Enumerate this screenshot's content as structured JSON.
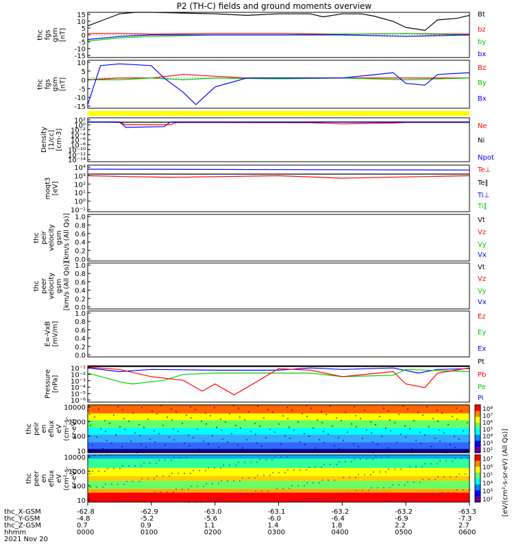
{
  "title": "P2 (TH-C) fields and ground moments overview",
  "colors": {
    "black": "#000000",
    "red": "#ff0000",
    "green": "#00cc00",
    "blue": "#0000ff",
    "yellow": "#ffff00",
    "axis": "#000000"
  },
  "chart_data": [
    {
      "id": "fgs",
      "type": "line",
      "ylabel": [
        "thc",
        "fgs",
        "gsm",
        "[nT]"
      ],
      "yticks": [
        "15",
        "10",
        "5",
        "0",
        "-5",
        "-10",
        "-15"
      ],
      "ylim": [
        -15,
        15
      ],
      "legend": [
        {
          "label": "Bt",
          "color": "black"
        },
        {
          "label": "bz",
          "color": "red"
        },
        {
          "label": "by",
          "color": "green"
        },
        {
          "label": "bx",
          "color": "blue"
        }
      ],
      "series": [
        {
          "name": "Bt",
          "color": "black",
          "x": [
            0,
            0.25,
            0.5,
            0.75,
            1.0,
            1.5,
            2.0,
            2.5,
            3.0,
            3.5,
            3.7,
            4.0,
            4.3,
            4.5,
            4.8,
            5.0,
            5.3,
            5.5,
            5.8,
            6.0
          ],
          "y": [
            6,
            10,
            14,
            15,
            15,
            14.5,
            14,
            13,
            14,
            14,
            12,
            14,
            14,
            12.5,
            9,
            5,
            3,
            10,
            11,
            13
          ]
        },
        {
          "name": "bz",
          "color": "red",
          "x": [
            0,
            0.5,
            1.0,
            2.0,
            3.0,
            4.0,
            5.0,
            6.0
          ],
          "y": [
            1,
            1,
            0.5,
            1,
            1,
            0.5,
            1,
            0.5
          ]
        },
        {
          "name": "by",
          "color": "green",
          "x": [
            0,
            0.5,
            1.0,
            2.0,
            3.0,
            4.0,
            5.0,
            6.0
          ],
          "y": [
            -4,
            -2,
            -1,
            0,
            0,
            0.5,
            1,
            0
          ]
        },
        {
          "name": "bx",
          "color": "blue",
          "x": [
            0,
            0.5,
            1.0,
            2.0,
            3.0,
            4.0,
            5.0,
            6.0
          ],
          "y": [
            -3,
            -1,
            0,
            0,
            0,
            0,
            -1,
            0
          ]
        }
      ]
    },
    {
      "id": "fgs_dsl",
      "type": "line",
      "ylabel": [
        "thc",
        "fgs",
        "gsm",
        "[nT]"
      ],
      "yticks": [
        "10",
        "5",
        "0",
        "-5",
        "-10",
        "-15"
      ],
      "ylim": [
        -17,
        10
      ],
      "legend": [
        {
          "label": "Bz",
          "color": "red"
        },
        {
          "label": "By",
          "color": "green"
        },
        {
          "label": "Bx",
          "color": "blue"
        }
      ],
      "series": [
        {
          "name": "Bz",
          "color": "red",
          "x": [
            0,
            0.5,
            1.0,
            1.5,
            2.0,
            2.5,
            3.0,
            4.0,
            5.0,
            6.0
          ],
          "y": [
            -1,
            0,
            0,
            2,
            1,
            0,
            0,
            0,
            0,
            0
          ]
        },
        {
          "name": "By",
          "color": "green",
          "x": [
            0,
            0.5,
            1.0,
            1.5,
            2.0,
            3.0,
            4.0,
            5.0,
            6.0
          ],
          "y": [
            -1,
            -1,
            0,
            -1,
            0,
            -0.5,
            0,
            -1,
            0
          ]
        },
        {
          "name": "Bx",
          "color": "blue",
          "x": [
            0,
            0.2,
            0.5,
            1.0,
            1.2,
            1.5,
            1.7,
            2.0,
            2.5,
            3.0,
            4.0,
            4.8,
            5.0,
            5.3,
            5.5,
            6.0
          ],
          "y": [
            -15,
            7,
            8,
            7,
            0,
            -8,
            -15,
            -5,
            0,
            0,
            0,
            3,
            -3,
            -4,
            2,
            3
          ]
        }
      ]
    },
    {
      "id": "density",
      "type": "line",
      "ylabel": [
        "Density",
        "[1/cc]",
        "[cm-3]"
      ],
      "yticks": [
        "10²",
        "10⁰",
        "10⁻²",
        "10⁻⁴",
        "10⁻⁶",
        "10⁻⁸",
        "10⁻¹⁰",
        "10⁻¹²",
        "10⁻¹⁴"
      ],
      "ylim": [
        -14,
        2
      ],
      "legend": [
        {
          "label": "Ne",
          "color": "red"
        },
        {
          "label": "Ni",
          "color": "black"
        },
        {
          "label": "Npot",
          "color": "blue"
        }
      ],
      "series": [
        {
          "name": "Ne",
          "color": "red",
          "x": [
            0,
            0.5,
            0.6,
            1.3,
            1.4,
            3.5,
            4.0,
            4.8,
            5.0,
            6.0
          ],
          "y": [
            0.5,
            0.3,
            -0.5,
            -0.5,
            0.3,
            0.2,
            -0.2,
            0.1,
            0.3,
            0.3
          ]
        },
        {
          "name": "Ni",
          "color": "black",
          "x": [
            0,
            6
          ],
          "y": [
            0.4,
            0.4
          ]
        },
        {
          "name": "Npot",
          "color": "blue",
          "x": [
            0,
            0.5,
            0.6,
            1.2,
            1.3,
            6.0
          ],
          "y": [
            0.5,
            0.5,
            -1.5,
            -1.2,
            0.5,
            0.5
          ]
        }
      ]
    },
    {
      "id": "moms",
      "type": "line",
      "ylabel": [
        "moqt3",
        "[eV]"
      ],
      "yticks": [
        "10⁴",
        "10³",
        "10²",
        "10¹",
        "10⁰",
        "10⁻¹"
      ],
      "ylim": [
        -1.5,
        4.2
      ],
      "legend": [
        {
          "label": "Te⊥",
          "color": "red"
        },
        {
          "label": "Te∥",
          "color": "black"
        },
        {
          "label": "Ti⊥",
          "color": "blue"
        },
        {
          "label": "Ti∥",
          "color": "green"
        }
      ],
      "series": [
        {
          "name": "Ti",
          "color": "blue",
          "x": [
            0,
            6
          ],
          "y": [
            3.7,
            3.6
          ]
        },
        {
          "name": "Te",
          "color": "black",
          "x": [
            0,
            6
          ],
          "y": [
            3.1,
            3.1
          ]
        },
        {
          "name": "Te⊥",
          "color": "red",
          "x": [
            0,
            0.6,
            1.3,
            3.0,
            4.0,
            6.0
          ],
          "y": [
            2.9,
            2.8,
            2.7,
            2.9,
            2.6,
            2.9
          ]
        }
      ]
    },
    {
      "id": "peir_vel",
      "type": "line",
      "ylabel": [
        "thc",
        "peir",
        "velocity",
        "gsm",
        "[km/s (All Qs)]"
      ],
      "yticks": [
        "1.0",
        "0.8",
        "0.6",
        "0.4",
        "0.2",
        "0.0"
      ],
      "ylim": [
        0,
        1
      ],
      "legend": [
        {
          "label": "Vt",
          "color": "black"
        },
        {
          "label": "Vz",
          "color": "red"
        },
        {
          "label": "Vy",
          "color": "green"
        },
        {
          "label": "Vx",
          "color": "blue"
        }
      ],
      "series": []
    },
    {
      "id": "peer_vel",
      "type": "line",
      "ylabel": [
        "thc",
        "peer",
        "velocity",
        "gsm",
        "[km/s (All Qs)]"
      ],
      "yticks": [
        "1.0",
        "0.8",
        "0.6",
        "0.4",
        "0.2",
        "0.0"
      ],
      "ylim": [
        0,
        1
      ],
      "legend": [
        {
          "label": "Vt",
          "color": "black"
        },
        {
          "label": "Vz",
          "color": "red"
        },
        {
          "label": "Vy",
          "color": "green"
        },
        {
          "label": "Vx",
          "color": "blue"
        }
      ],
      "series": []
    },
    {
      "id": "efield",
      "type": "line",
      "ylabel": [
        "E=-VxB",
        "[mV/m]"
      ],
      "yticks": [
        "1.0",
        "0.8",
        "0.6",
        "0.4",
        "0.2",
        "0.0"
      ],
      "ylim": [
        0,
        1
      ],
      "legend": [
        {
          "label": "Ez",
          "color": "red"
        },
        {
          "label": "Ey",
          "color": "green"
        },
        {
          "label": "Ex",
          "color": "blue"
        }
      ],
      "series": []
    },
    {
      "id": "pressure",
      "type": "line",
      "ylabel": [
        "Pressure",
        "[nPa]"
      ],
      "yticks": [
        "10⁻¹",
        "10⁻²",
        "10⁻³",
        "10⁻⁴",
        "10⁻⁵",
        "10⁻⁶"
      ],
      "ylim": [
        -6,
        -1
      ],
      "legend": [
        {
          "label": "Pt",
          "color": "black"
        },
        {
          "label": "Pb",
          "color": "red"
        },
        {
          "label": "Pe",
          "color": "green"
        },
        {
          "label": "Pi",
          "color": "blue"
        }
      ],
      "series": [
        {
          "name": "Pt",
          "color": "black",
          "x": [
            0,
            6
          ],
          "y": [
            -1.1,
            -1.1
          ]
        },
        {
          "name": "Pi",
          "color": "blue",
          "x": [
            0,
            0.5,
            1.0,
            2.0,
            3.0,
            3.5,
            4.0,
            4.8,
            5.2,
            5.5,
            6.0
          ],
          "y": [
            -1.3,
            -1.8,
            -1.5,
            -1.6,
            -1.6,
            -1.3,
            -1.5,
            -1.3,
            -2.0,
            -1.5,
            -1.4
          ]
        },
        {
          "name": "Pe",
          "color": "green",
          "x": [
            0,
            0.5,
            0.7,
            1.2,
            1.5,
            2.0,
            3.0,
            3.5,
            4.0,
            4.8,
            5.0,
            6.0
          ],
          "y": [
            -2.0,
            -3.2,
            -3.5,
            -3.0,
            -2.2,
            -2.0,
            -2.0,
            -2.0,
            -2.5,
            -2.3,
            -1.5,
            -1.8
          ]
        },
        {
          "name": "Pb",
          "color": "red",
          "x": [
            0,
            0.5,
            1.0,
            1.5,
            1.8,
            2.0,
            2.3,
            2.5,
            3.0,
            3.5,
            4.0,
            4.8,
            5.0,
            5.3,
            5.5,
            6.0
          ],
          "y": [
            -1.2,
            -1.5,
            -2.5,
            -3.0,
            -4.5,
            -3.5,
            -5.0,
            -4.0,
            -1.4,
            -1.6,
            -2.5,
            -1.8,
            -3.5,
            -4.0,
            -2.0,
            -1.3
          ]
        }
      ]
    },
    {
      "id": "peir_eflux",
      "type": "heatmap",
      "ylabel": [
        "thc",
        "peir",
        "en",
        "eflux",
        "eV",
        "(cm²-s-",
        "sr-eV)"
      ],
      "yticks": [
        "10000",
        "1000",
        "100",
        "10"
      ],
      "colorbar_ticks": [
        "10⁸",
        "10⁷",
        "10⁶",
        "10⁵",
        "10⁴",
        "10³",
        "10²"
      ],
      "colorbar_label": "[eV/(cm²-s-sr-eV) (All Qs)]"
    },
    {
      "id": "peer_eflux",
      "type": "heatmap",
      "ylabel": [
        "thc",
        "peer",
        "en",
        "eflux",
        "eV",
        "(cm²-s-",
        "sr-eV)"
      ],
      "yticks": [
        "10000",
        "1000",
        "100",
        "10"
      ],
      "colorbar_ticks": [
        "10⁷",
        "10⁶",
        "10⁵",
        "10⁴",
        "10³",
        "10²"
      ],
      "colorbar_label": "[eV/(cm²-s-sr-eV) (All Qs)]"
    }
  ],
  "xaxis": {
    "ticks_hhmm": [
      "0000",
      "0100",
      "0200",
      "0300",
      "0400",
      "0500",
      "0600"
    ],
    "rows": [
      {
        "label": "thc_X-GSM",
        "values": [
          "-62.8",
          "-62.9",
          "-63.0",
          "-63.1",
          "-63.2",
          "-63.2",
          "-63.3"
        ]
      },
      {
        "label": "thc_Y-GSM",
        "values": [
          "-4.8",
          "-5.2",
          "-5.6",
          "-6.0",
          "-6.4",
          "-6.9",
          "-7.3"
        ]
      },
      {
        "label": "thc_Z-GSM",
        "values": [
          "0.7",
          "0.9",
          "1.1",
          "1.4",
          "1.8",
          "2.2",
          "2.7"
        ]
      },
      {
        "label": "hhmm",
        "values": [
          "0000",
          "0100",
          "0200",
          "0300",
          "0400",
          "0500",
          "0600"
        ]
      }
    ],
    "date": "2021 Nov 20"
  }
}
